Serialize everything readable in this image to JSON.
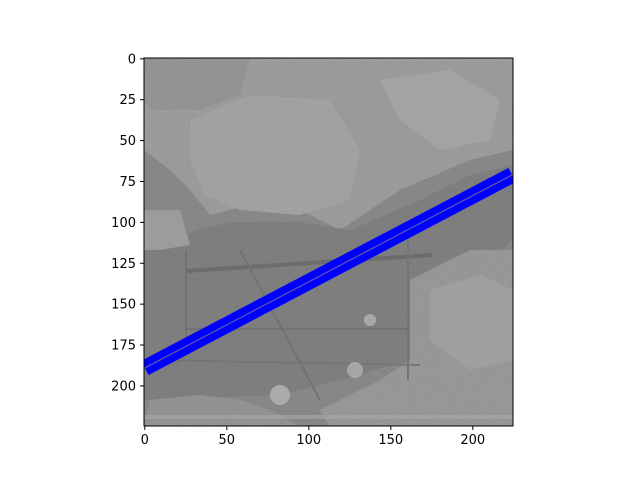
{
  "chart_data": {
    "type": "image-with-line-overlay",
    "title": "",
    "xlabel": "",
    "ylabel": "",
    "xlim": [
      0,
      224
    ],
    "ylim": [
      224,
      0
    ],
    "x_ticks": [
      0,
      50,
      100,
      150,
      200
    ],
    "y_ticks": [
      0,
      25,
      50,
      75,
      100,
      125,
      150,
      175,
      200
    ],
    "image_description": "grayscale aerial/SAR image of fields with an airstrip",
    "overlay_line": {
      "x": [
        0,
        224
      ],
      "y": [
        189,
        71
      ],
      "band_color": "#0000ff",
      "center_color": "#5b5ba8"
    }
  },
  "colors": {
    "band": "#0000ff",
    "center": "#5b5ba8",
    "axis": "#000000"
  }
}
